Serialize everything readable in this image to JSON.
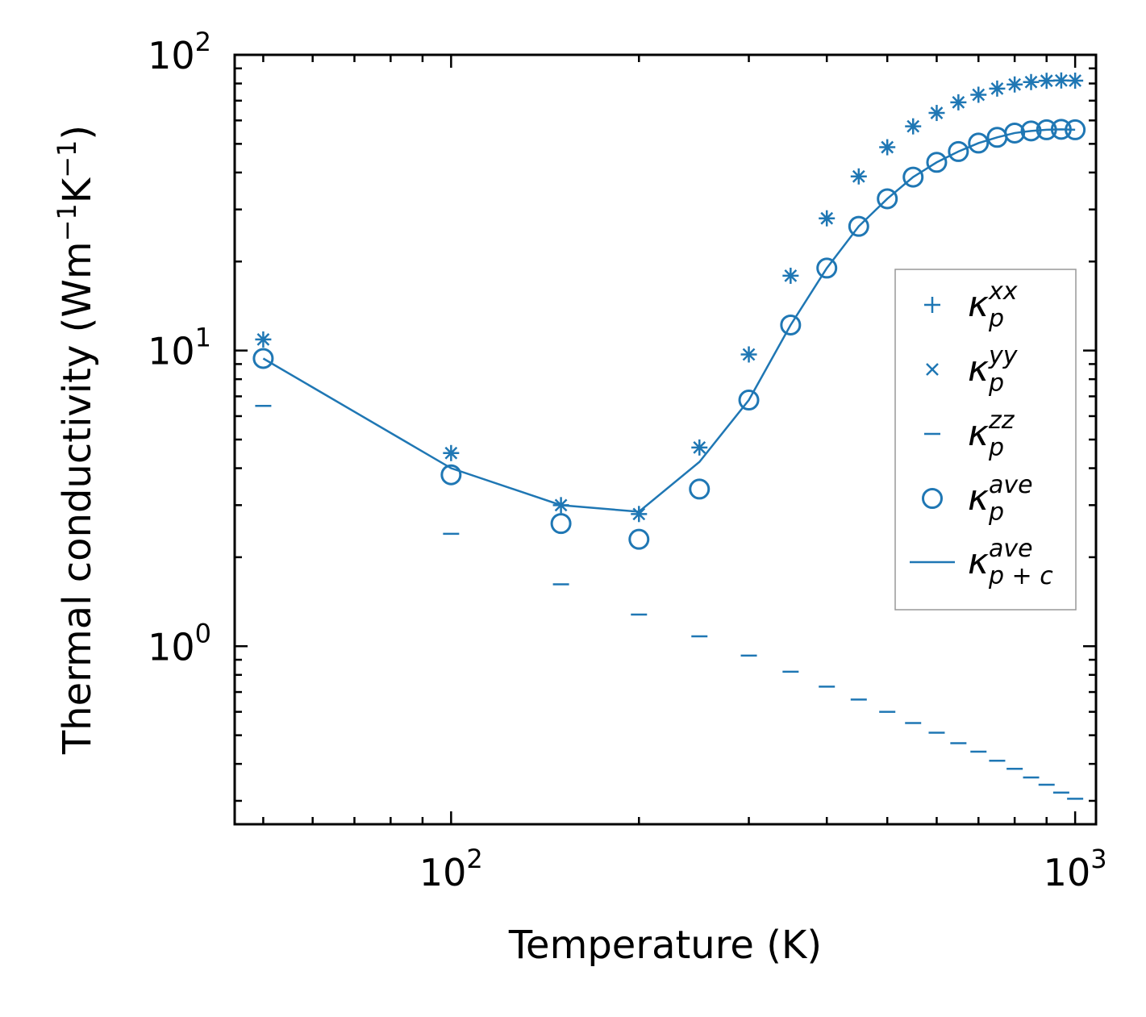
{
  "chart_data": {
    "type": "scatter",
    "xscale": "log",
    "yscale": "log",
    "xlabel": "Temperature (K)",
    "ylabel": {
      "prefix": "Thermal conductivity (Wm",
      "exp1": "−1",
      "mid": "K",
      "exp2": "−1",
      "suffix": ")"
    },
    "xlim": [
      45,
      1080
    ],
    "ylim": [
      0.25,
      100
    ],
    "xticks": [
      {
        "value": 100,
        "base": "10",
        "exp": "2"
      },
      {
        "value": 1000,
        "base": "10",
        "exp": "3"
      }
    ],
    "yticks": [
      {
        "value": 1,
        "base": "10",
        "exp": "0"
      },
      {
        "value": 10,
        "base": "10",
        "exp": "1"
      },
      {
        "value": 100,
        "base": "10",
        "exp": "2"
      }
    ],
    "color": "#1f77b4",
    "x": [
      50,
      100,
      150,
      200,
      250,
      300,
      350,
      400,
      450,
      500,
      550,
      600,
      650,
      700,
      750,
      800,
      850,
      900,
      950,
      1000
    ],
    "series": [
      {
        "name": "kappa_p^xx",
        "marker": "plus",
        "legend_base": "κ",
        "legend_sub": "p",
        "legend_sup": "xx",
        "values": [
          10.9,
          4.5,
          3.0,
          2.8,
          4.7,
          9.7,
          17.9,
          28.0,
          38.8,
          48.7,
          57.3,
          63.6,
          69.1,
          73.3,
          76.9,
          79.4,
          80.9,
          81.7,
          81.9,
          81.8
        ]
      },
      {
        "name": "kappa_p^yy",
        "marker": "x",
        "legend_base": "κ",
        "legend_sub": "p",
        "legend_sup": "yy",
        "values": [
          10.9,
          4.5,
          3.0,
          2.8,
          4.7,
          9.7,
          17.9,
          28.0,
          38.8,
          48.7,
          57.3,
          63.6,
          69.1,
          73.3,
          76.9,
          79.4,
          80.9,
          81.7,
          81.9,
          81.8
        ]
      },
      {
        "name": "kappa_p^zz",
        "marker": "hline",
        "legend_base": "κ",
        "legend_sub": "p",
        "legend_sup": "zz",
        "values": [
          6.5,
          2.4,
          1.62,
          1.28,
          1.08,
          0.93,
          0.82,
          0.73,
          0.66,
          0.6,
          0.55,
          0.51,
          0.47,
          0.44,
          0.41,
          0.385,
          0.36,
          0.34,
          0.32,
          0.305
        ]
      },
      {
        "name": "kappa_p^ave",
        "marker": "circle",
        "legend_base": "κ",
        "legend_sub": "p",
        "legend_sup": "ave",
        "values": [
          9.4,
          3.8,
          2.6,
          2.3,
          3.4,
          6.8,
          12.2,
          19.0,
          26.3,
          32.6,
          38.6,
          43.3,
          47.1,
          50.3,
          52.6,
          54.4,
          55.3,
          55.8,
          56.0,
          55.8
        ]
      },
      {
        "name": "kappa_p+c^ave",
        "marker": "line",
        "legend_base": "κ",
        "legend_sub": "p + c",
        "legend_sup": "ave",
        "values": [
          9.4,
          4.0,
          3.0,
          2.85,
          4.2,
          6.8,
          12.2,
          19.0,
          26.3,
          32.6,
          38.6,
          43.3,
          47.1,
          50.3,
          52.6,
          54.4,
          55.3,
          55.8,
          56.0,
          55.8
        ]
      }
    ],
    "legend_position": "center-right"
  }
}
